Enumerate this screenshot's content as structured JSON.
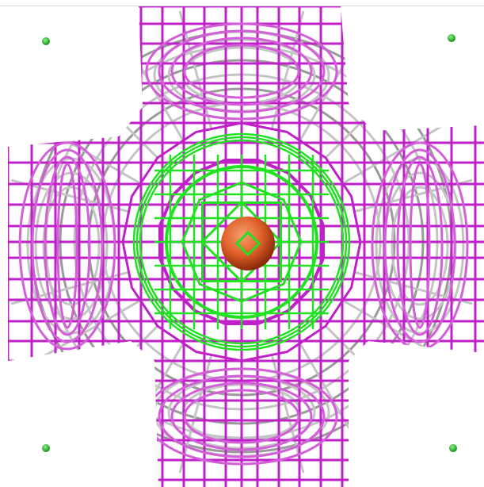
{
  "scene": {
    "background": "#ffffff",
    "colors": {
      "outer_mesh": "#c020c8",
      "outer_mesh_light": "#d35fd8",
      "inner_mesh": "#22e022",
      "gray_mesh": "#c4c4c4",
      "gray_mesh_dark": "#9a9a9a",
      "center_atom": "#e0602a",
      "corner_atom": "#2ec62e"
    },
    "objects": [
      "cross-shaped-isosurface-wireframe",
      "inner-isosurface-wireframe",
      "central-atom",
      "corner-atoms"
    ]
  }
}
